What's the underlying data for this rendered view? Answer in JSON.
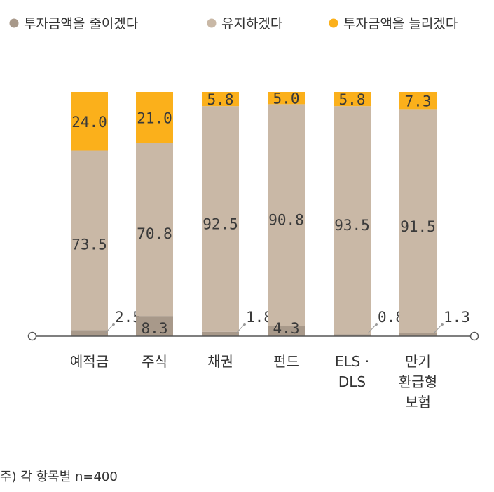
{
  "chart_data": {
    "type": "bar",
    "stacked": true,
    "orientation": "vertical",
    "categories": [
      [
        "예적금"
      ],
      [
        "주식"
      ],
      [
        "채권"
      ],
      [
        "펀드"
      ],
      [
        "ELS ·",
        "DLS"
      ],
      [
        "만기",
        "환급형",
        "보험"
      ]
    ],
    "series": [
      {
        "name": "투자금액을 줄이겠다",
        "color": "#a8998a",
        "values": [
          2.5,
          8.3,
          1.8,
          4.3,
          0.8,
          1.3
        ]
      },
      {
        "name": "유지하겠다",
        "color": "#c9b8a6",
        "values": [
          73.5,
          70.8,
          92.5,
          90.8,
          93.5,
          91.5
        ]
      },
      {
        "name": "투자금액을 늘리겠다",
        "color": "#fbb01b",
        "values": [
          24.0,
          21.0,
          5.8,
          5.0,
          5.8,
          7.3
        ]
      }
    ],
    "ylim": [
      0,
      100
    ],
    "legend_position": "top",
    "grid": false
  },
  "footnote": "주) 각 항목별 n=400"
}
